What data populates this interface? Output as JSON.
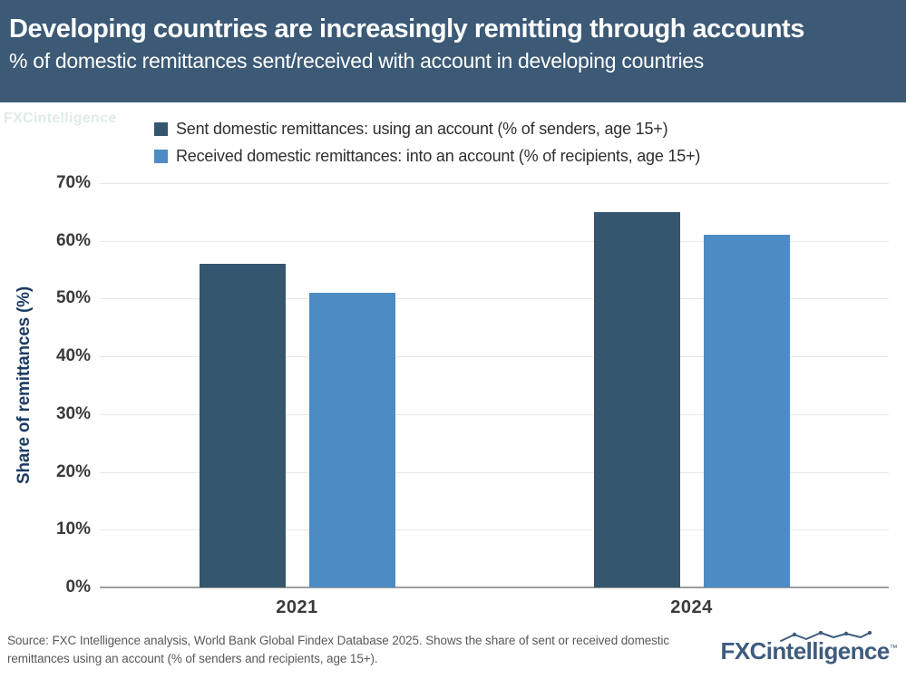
{
  "header": {
    "title": "Developing countries are increasingly remitting through accounts",
    "subtitle": "% of domestic remittances sent/received with account in developing countries",
    "bg_color": "#3c5a76",
    "text_color": "#ffffff"
  },
  "watermark": "FXCintelligence",
  "chart_data": {
    "type": "bar",
    "title": "Developing countries are increasingly remitting through accounts",
    "subtitle": "% of domestic remittances sent/received with account in developing countries",
    "categories": [
      "2021",
      "2024"
    ],
    "series": [
      {
        "name": "Sent domestic remittances: using an account (% of senders, age 15+)",
        "color": "#35566f",
        "values": [
          56,
          65
        ]
      },
      {
        "name": "Received domestic remittances: into an account (% of recipients, age 15+)",
        "color": "#4c8bc4",
        "values": [
          51,
          61
        ]
      }
    ],
    "xlabel": "",
    "ylabel": "Share of remittances (%)",
    "ylim": [
      0,
      70
    ],
    "yticks": [
      0,
      10,
      20,
      30,
      40,
      50,
      60,
      70
    ],
    "ytick_suffix": "%",
    "grid": true,
    "legend_position": "top"
  },
  "footer": {
    "source": "Source: FXC Intelligence analysis, World Bank Global Findex Database 2025. Shows the share of sent or received domestic remittances using an account (% of senders and recipients, age 15+).",
    "logo": {
      "bold": "FXC",
      "rest": "intelligence",
      "tm": "™"
    }
  },
  "colors": {
    "header_bg": "#3c5a76",
    "sent_bar": "#35566f",
    "received_bar": "#4c8bc4",
    "axis_title": "#1d3c63",
    "tick_label": "#3a3a3a",
    "gridline": "#e7e7e7",
    "baseline": "#9e9e9e",
    "source_text": "#58595b",
    "logo": "#3e5c7e"
  }
}
